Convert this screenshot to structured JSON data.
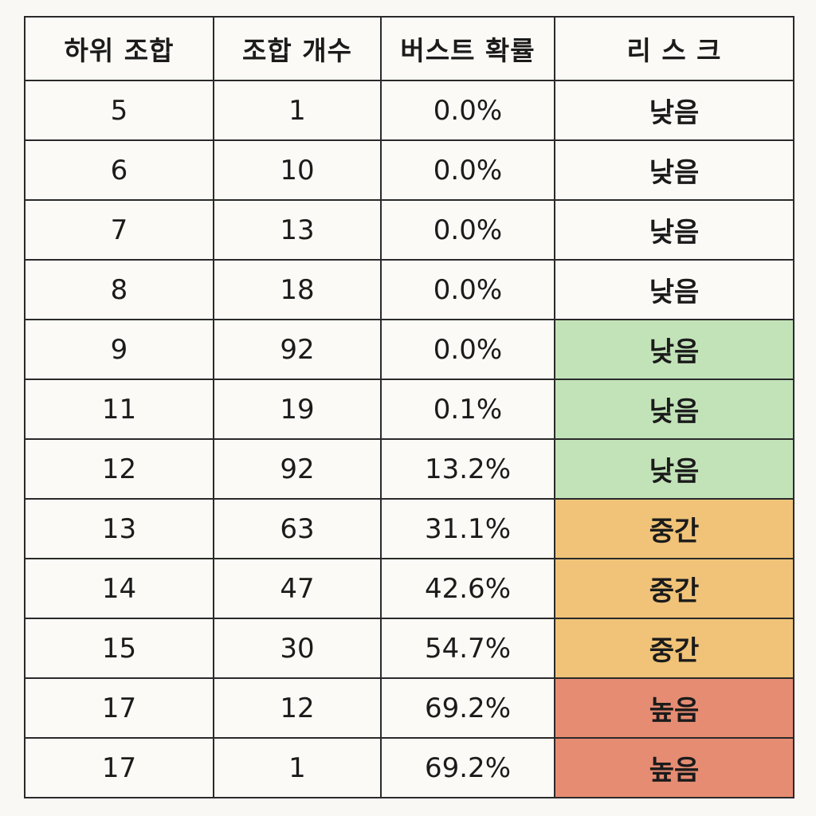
{
  "table": {
    "headers": [
      "하위 조합",
      "조합 개수",
      "버스트 확률",
      "리 스 크"
    ],
    "rows": [
      {
        "subtotal": "5",
        "count": "1",
        "bust": "0.0%",
        "risk": "낮음",
        "risk_color": "#fbfaf6"
      },
      {
        "subtotal": "6",
        "count": "10",
        "bust": "0.0%",
        "risk": "낮음",
        "risk_color": "#fbfaf6"
      },
      {
        "subtotal": "7",
        "count": "13",
        "bust": "0.0%",
        "risk": "낮음",
        "risk_color": "#fbfaf6"
      },
      {
        "subtotal": "8",
        "count": "18",
        "bust": "0.0%",
        "risk": "낮음",
        "risk_color": "#fbfaf6"
      },
      {
        "subtotal": "9",
        "count": "92",
        "bust": "0.0%",
        "risk": "낮음",
        "risk_color": "#c2e3b8"
      },
      {
        "subtotal": "11",
        "count": "19",
        "bust": "0.1%",
        "risk": "낮음",
        "risk_color": "#c2e3b8"
      },
      {
        "subtotal": "12",
        "count": "92",
        "bust": "13.2%",
        "risk": "낮음",
        "risk_color": "#c2e3b8"
      },
      {
        "subtotal": "13",
        "count": "63",
        "bust": "31.1%",
        "risk": "중간",
        "risk_color": "#f0c378"
      },
      {
        "subtotal": "14",
        "count": "47",
        "bust": "42.6%",
        "risk": "중간",
        "risk_color": "#f0c378"
      },
      {
        "subtotal": "15",
        "count": "30",
        "bust": "54.7%",
        "risk": "중간",
        "risk_color": "#f0c378"
      },
      {
        "subtotal": "17",
        "count": "12",
        "bust": "69.2%",
        "risk": "높음",
        "risk_color": "#e68c72"
      },
      {
        "subtotal": "17",
        "count": "1",
        "bust": "69.2%",
        "risk": "높음",
        "risk_color": "#e68c72"
      }
    ]
  }
}
